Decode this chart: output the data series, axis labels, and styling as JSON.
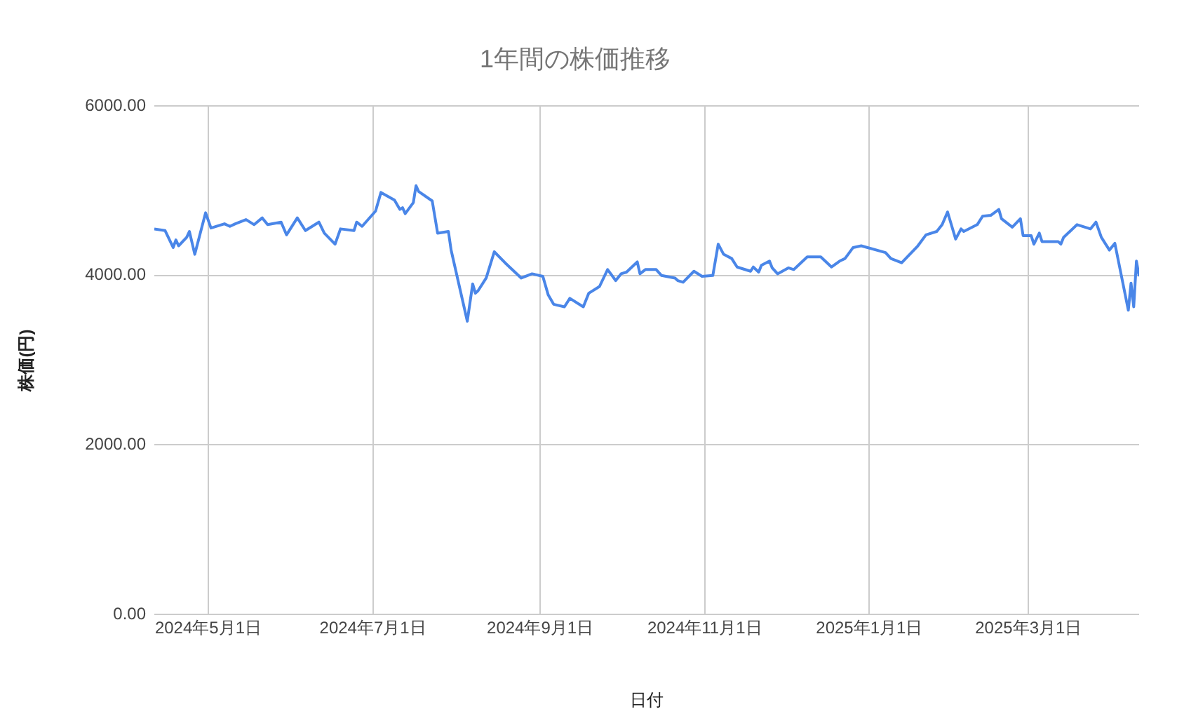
{
  "chart_data": {
    "type": "line",
    "title": "1年間の株価推移",
    "xlabel": "日付",
    "ylabel": "株価(円)",
    "x": [
      "2024-04-11",
      "2024-04-15",
      "2024-04-18",
      "2024-04-19",
      "2024-04-20",
      "2024-04-23",
      "2024-04-24",
      "2024-04-26",
      "2024-04-30",
      "2024-05-02",
      "2024-05-07",
      "2024-05-09",
      "2024-05-11",
      "2024-05-15",
      "2024-05-18",
      "2024-05-21",
      "2024-05-23",
      "2024-05-28",
      "2024-05-30",
      "2024-06-03",
      "2024-06-06",
      "2024-06-11",
      "2024-06-13",
      "2024-06-17",
      "2024-06-19",
      "2024-06-24",
      "2024-06-25",
      "2024-06-27",
      "2024-07-02",
      "2024-07-04",
      "2024-07-09",
      "2024-07-11",
      "2024-07-12",
      "2024-07-13",
      "2024-07-16",
      "2024-07-17",
      "2024-07-18",
      "2024-07-23",
      "2024-07-25",
      "2024-07-29",
      "2024-07-30",
      "2024-08-05",
      "2024-08-07",
      "2024-08-08",
      "2024-08-09",
      "2024-08-12",
      "2024-08-15",
      "2024-08-19",
      "2024-08-25",
      "2024-08-29",
      "2024-09-02",
      "2024-09-04",
      "2024-09-06",
      "2024-09-10",
      "2024-09-12",
      "2024-09-17",
      "2024-09-19",
      "2024-09-23",
      "2024-09-26",
      "2024-09-29",
      "2024-10-01",
      "2024-10-03",
      "2024-10-07",
      "2024-10-08",
      "2024-10-10",
      "2024-10-14",
      "2024-10-16",
      "2024-10-21",
      "2024-10-22",
      "2024-10-24",
      "2024-10-28",
      "2024-10-31",
      "2024-11-04",
      "2024-11-06",
      "2024-11-08",
      "2024-11-11",
      "2024-11-13",
      "2024-11-18",
      "2024-11-19",
      "2024-11-21",
      "2024-11-22",
      "2024-11-25",
      "2024-11-26",
      "2024-11-28",
      "2024-12-02",
      "2024-12-04",
      "2024-12-05",
      "2024-12-09",
      "2024-12-14",
      "2024-12-18",
      "2024-12-21",
      "2024-12-23",
      "2024-12-26",
      "2024-12-29",
      "2025-01-07",
      "2025-01-09",
      "2025-01-13",
      "2025-01-19",
      "2025-01-22",
      "2025-01-26",
      "2025-01-28",
      "2025-01-30",
      "2025-02-02",
      "2025-02-04",
      "2025-02-05",
      "2025-02-10",
      "2025-02-12",
      "2025-02-15",
      "2025-02-18",
      "2025-02-19",
      "2025-02-23",
      "2025-02-26",
      "2025-02-27",
      "2025-03-02",
      "2025-03-03",
      "2025-03-05",
      "2025-03-06",
      "2025-03-09",
      "2025-03-12",
      "2025-03-13",
      "2025-03-14",
      "2025-03-19",
      "2025-03-24",
      "2025-03-26",
      "2025-03-28",
      "2025-03-31",
      "2025-04-02",
      "2025-04-07",
      "2025-04-08",
      "2025-04-09",
      "2025-04-10",
      "2025-04-11"
    ],
    "series": [
      {
        "color": "#4a86e8",
        "values": [
          4550,
          4530,
          4330,
          4420,
          4350,
          4450,
          4520,
          4250,
          4740,
          4560,
          4610,
          4580,
          4610,
          4660,
          4600,
          4680,
          4600,
          4630,
          4480,
          4680,
          4530,
          4630,
          4500,
          4370,
          4550,
          4530,
          4630,
          4580,
          4760,
          4980,
          4890,
          4780,
          4800,
          4730,
          4860,
          5060,
          4990,
          4880,
          4500,
          4520,
          4300,
          3460,
          3900,
          3790,
          3820,
          3970,
          4280,
          4150,
          3970,
          4020,
          3990,
          3770,
          3660,
          3630,
          3730,
          3630,
          3790,
          3870,
          4070,
          3940,
          4020,
          4040,
          4160,
          4020,
          4070,
          4070,
          4000,
          3970,
          3940,
          3920,
          4050,
          3990,
          4000,
          4370,
          4250,
          4200,
          4100,
          4050,
          4100,
          4040,
          4120,
          4170,
          4090,
          4020,
          4090,
          4070,
          4100,
          4220,
          4220,
          4100,
          4170,
          4200,
          4330,
          4350,
          4270,
          4200,
          4150,
          4350,
          4480,
          4520,
          4600,
          4750,
          4430,
          4550,
          4520,
          4600,
          4700,
          4710,
          4780,
          4670,
          4570,
          4670,
          4470,
          4470,
          4370,
          4500,
          4400,
          4400,
          4400,
          4370,
          4450,
          4600,
          4550,
          4630,
          4450,
          4300,
          4380,
          3590,
          3910,
          3630,
          4170,
          3990
        ]
      }
    ],
    "xlim": [
      "2024-04-11",
      "2025-04-11"
    ],
    "xticks": [
      {
        "value": "2024-05-01",
        "label": "2024年5月1日"
      },
      {
        "value": "2024-07-01",
        "label": "2024年7月1日"
      },
      {
        "value": "2024-09-01",
        "label": "2024年9月1日"
      },
      {
        "value": "2024-11-01",
        "label": "2024年11月1日"
      },
      {
        "value": "2025-01-01",
        "label": "2025年1月1日"
      },
      {
        "value": "2025-03-01",
        "label": "2025年3月1日"
      }
    ],
    "ylim": [
      0,
      6000
    ],
    "yticks": [
      {
        "value": 0,
        "label": "0.00"
      },
      {
        "value": 2000,
        "label": "2000.00"
      },
      {
        "value": 4000,
        "label": "4000.00"
      },
      {
        "value": 6000,
        "label": "6000.00"
      }
    ],
    "grid": true,
    "marker": "none",
    "line_style": "solid"
  }
}
